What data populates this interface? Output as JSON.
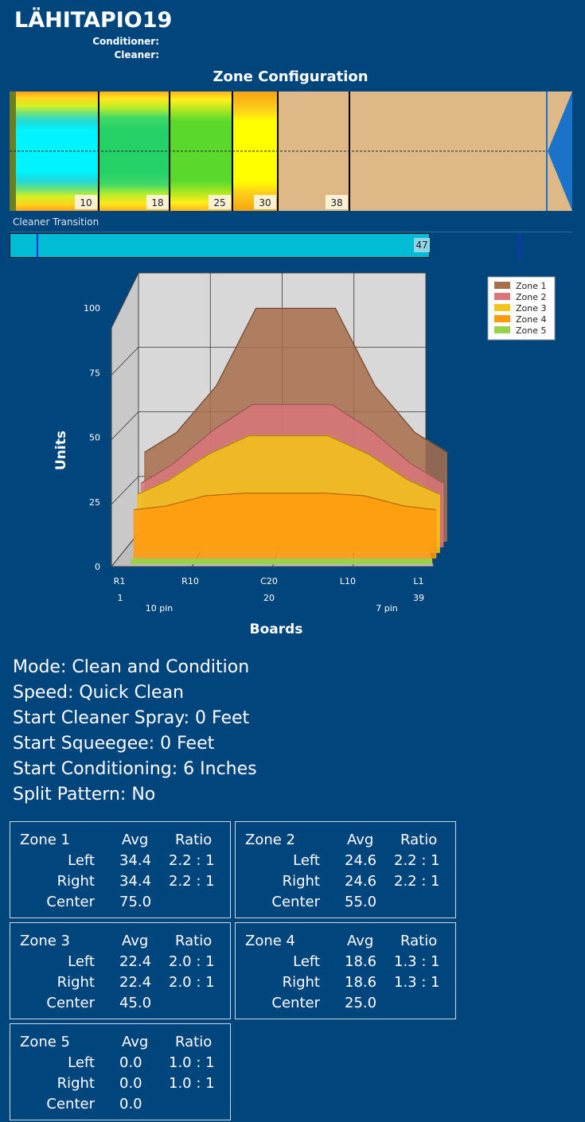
{
  "header": {
    "title": "LÄHITAPIO19",
    "conditioner_label": "Conditioner:",
    "cleaner_label": "Cleaner:"
  },
  "zone_configuration": {
    "title": "Zone Configuration",
    "markers": [
      "10",
      "18",
      "25",
      "30",
      "38"
    ]
  },
  "cleaner_transition": {
    "label": "Cleaner Transition",
    "value": "47"
  },
  "chart": {
    "ylabel": "Units",
    "xlabel": "Boards",
    "y_ticks": [
      "0",
      "25",
      "50",
      "75",
      "100"
    ],
    "x_ticks": [
      "R1",
      "R10",
      "C20",
      "L10",
      "L1"
    ],
    "x_numbers": [
      "1",
      "20",
      "39"
    ],
    "pin_labels": [
      "10 pin",
      "7 pin"
    ],
    "legend": [
      "Zone 1",
      "Zone 2",
      "Zone 3",
      "Zone 4",
      "Zone 5"
    ]
  },
  "chart_data": {
    "type": "area",
    "title": "",
    "xlabel": "Boards",
    "ylabel": "Units",
    "ylim": [
      0,
      100
    ],
    "x": [
      1,
      5,
      10,
      15,
      20,
      25,
      30,
      35,
      39
    ],
    "series": [
      {
        "name": "Zone 1",
        "color": "#a86f4c",
        "values": [
          34.4,
          42,
          60,
          90,
          90,
          90,
          60,
          42,
          34.4
        ]
      },
      {
        "name": "Zone 2",
        "color": "#d9767a",
        "values": [
          24.6,
          32,
          45,
          55,
          55,
          55,
          45,
          32,
          24.6
        ]
      },
      {
        "name": "Zone 3",
        "color": "#f3c419",
        "values": [
          22.4,
          28,
          38,
          45,
          45,
          45,
          38,
          28,
          22.4
        ]
      },
      {
        "name": "Zone 4",
        "color": "#ff9a0e",
        "values": [
          18.6,
          20,
          24,
          25,
          25,
          25,
          24,
          20,
          18.6
        ]
      },
      {
        "name": "Zone 5",
        "color": "#9ad14a",
        "values": [
          0,
          0,
          0,
          0,
          0,
          0,
          0,
          0,
          0
        ]
      }
    ],
    "legend": "top-right"
  },
  "settings": [
    "Mode: Clean and Condition",
    "Speed: Quick Clean",
    "Start Cleaner Spray: 0 Feet",
    "Start Squeegee: 0 Feet",
    "Start Conditioning: 6 Inches",
    "Split Pattern: No"
  ],
  "zone_table": {
    "avg_label": "Avg",
    "ratio_label": "Ratio",
    "left_label": "Left",
    "right_label": "Right",
    "center_label": "Center",
    "zones": [
      {
        "name": "Zone 1",
        "left_avg": "34.4",
        "left_ratio": "2.2 : 1",
        "right_avg": "34.4",
        "right_ratio": "2.2 : 1",
        "center": "75.0"
      },
      {
        "name": "Zone 2",
        "left_avg": "24.6",
        "left_ratio": "2.2 : 1",
        "right_avg": "24.6",
        "right_ratio": "2.2 : 1",
        "center": "55.0"
      },
      {
        "name": "Zone 3",
        "left_avg": "22.4",
        "left_ratio": "2.0 : 1",
        "right_avg": "22.4",
        "right_ratio": "2.0 : 1",
        "center": "45.0"
      },
      {
        "name": "Zone 4",
        "left_avg": "18.6",
        "left_ratio": "1.3 : 1",
        "right_avg": "18.6",
        "right_ratio": "1.3 : 1",
        "center": "25.0"
      },
      {
        "name": "Zone 5",
        "left_avg": "0.0",
        "left_ratio": "1.0 : 1",
        "right_avg": "0.0",
        "right_ratio": "1.0 : 1",
        "center": "0.0"
      }
    ]
  }
}
